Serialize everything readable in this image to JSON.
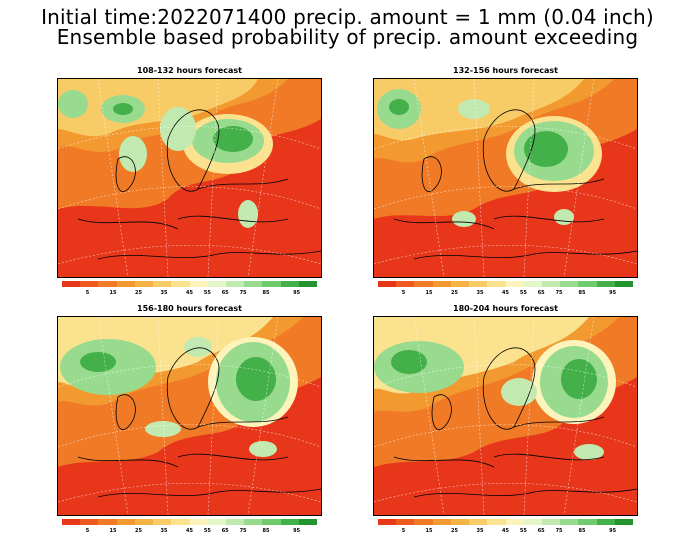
{
  "header": {
    "line1": "Initial time:2022071400 precip. amount = 1 mm (0.04 inch)",
    "line2": "Ensemble based probability of precip. amount exceeding"
  },
  "panels": [
    {
      "title": "108-132 hours forecast"
    },
    {
      "title": "132-156 hours forecast"
    },
    {
      "title": "156-180 hours forecast"
    },
    {
      "title": "180-204 hours forecast"
    }
  ],
  "colorbar": {
    "colors": [
      "#e8361b",
      "#ee5a1f",
      "#f07a25",
      "#f29a30",
      "#f4b445",
      "#f7cc66",
      "#fae28e",
      "#fdf4bc",
      "#e4f5c7",
      "#c2eab0",
      "#98db8f",
      "#6fcb6e",
      "#43b04a",
      "#23952f"
    ],
    "labels": [
      "5",
      "15",
      "25",
      "35",
      "45",
      "55",
      "65",
      "75",
      "85",
      "95"
    ]
  }
}
